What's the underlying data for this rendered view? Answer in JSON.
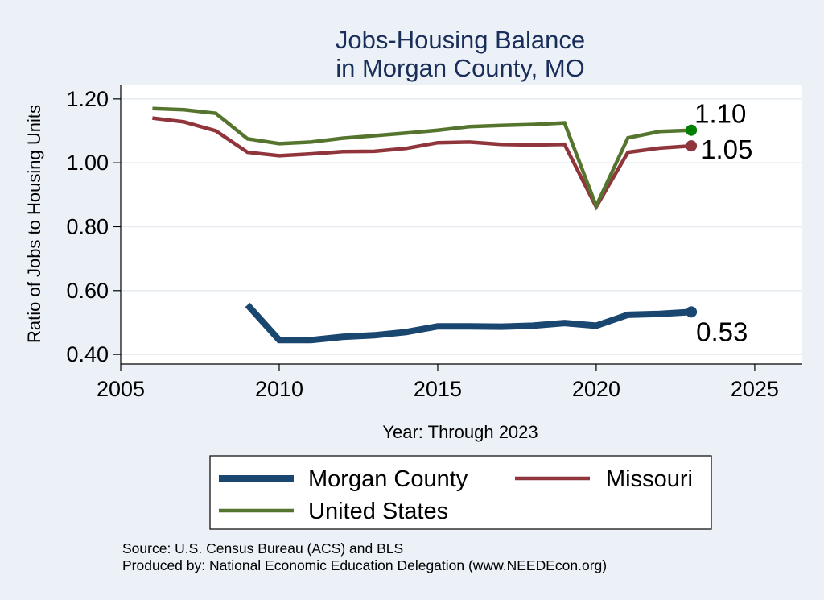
{
  "chart_data": {
    "type": "line",
    "title": [
      "Jobs-Housing Balance",
      "in Morgan County, MO"
    ],
    "xlabel": "Year: Through 2023",
    "ylabel": "Ratio of Jobs to Housing Units",
    "xlim": [
      2005,
      2026.5
    ],
    "ylim": [
      0.37,
      1.245
    ],
    "xticks": [
      2005,
      2010,
      2015,
      2020,
      2025
    ],
    "yticks": [
      0.4,
      0.6,
      0.8,
      1.0,
      1.2
    ],
    "ytick_labels": [
      "0.40",
      "0.60",
      "0.80",
      "1.00",
      "1.20"
    ],
    "grid": true,
    "legend_position": "bottom",
    "series": [
      {
        "name": "Morgan County",
        "color": "#1a476f",
        "x": [
          2009,
          2010,
          2011,
          2012,
          2013,
          2014,
          2015,
          2016,
          2017,
          2018,
          2019,
          2020,
          2021,
          2022,
          2023
        ],
        "values": [
          0.555,
          0.445,
          0.445,
          0.455,
          0.46,
          0.47,
          0.488,
          0.488,
          0.487,
          0.49,
          0.498,
          0.49,
          0.524,
          0.527,
          0.533
        ],
        "end_label": "0.53"
      },
      {
        "name": "Missouri",
        "color": "#90353b",
        "x": [
          2006,
          2007,
          2008,
          2009,
          2010,
          2011,
          2012,
          2013,
          2014,
          2015,
          2016,
          2017,
          2018,
          2019,
          2020,
          2021,
          2022,
          2023
        ],
        "values": [
          1.14,
          1.128,
          1.1,
          1.033,
          1.022,
          1.028,
          1.035,
          1.036,
          1.045,
          1.063,
          1.065,
          1.058,
          1.056,
          1.058,
          0.862,
          1.033,
          1.046,
          1.053
        ],
        "end_label": "1.05"
      },
      {
        "name": "United States",
        "color": "#55752f",
        "x": [
          2006,
          2007,
          2008,
          2009,
          2010,
          2011,
          2012,
          2013,
          2014,
          2015,
          2016,
          2017,
          2018,
          2019,
          2020,
          2021,
          2022,
          2023
        ],
        "values": [
          1.17,
          1.166,
          1.155,
          1.075,
          1.06,
          1.065,
          1.077,
          1.085,
          1.093,
          1.102,
          1.113,
          1.117,
          1.12,
          1.125,
          0.865,
          1.078,
          1.098,
          1.102
        ],
        "end_label": "1.10",
        "end_marker_color": "#008000"
      }
    ],
    "notes": [
      "Source: U.S. Census Bureau (ACS) and BLS",
      "Produced by: National Economic Education Delegation (www.NEEDEcon.org)"
    ]
  }
}
